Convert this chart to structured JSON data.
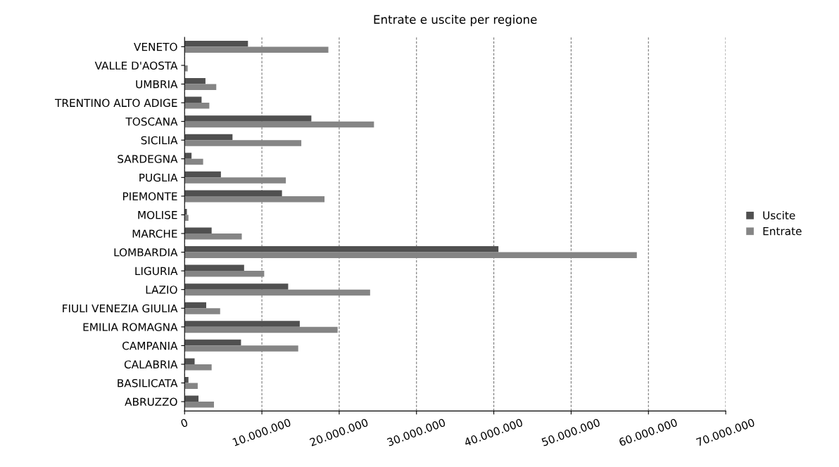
{
  "chart_data": {
    "type": "bar",
    "orientation": "horizontal",
    "title": "Entrate e uscite per regione",
    "categories": [
      "VENETO",
      "VALLE D'AOSTA",
      "UMBRIA",
      "TRENTINO ALTO ADIGE",
      "TOSCANA",
      "SICILIA",
      "SARDEGNA",
      "PUGLIA",
      "PIEMONTE",
      "MOLISE",
      "MARCHE",
      "LOMBARDIA",
      "LIGURIA",
      "LAZIO",
      "FIULI VENEZIA GIULIA",
      "EMILIA ROMAGNA",
      "CAMPANIA",
      "CALABRIA",
      "BASILICATA",
      "ABRUZZO"
    ],
    "series": [
      {
        "name": "Uscite",
        "color": "#505050",
        "values": [
          8200000,
          null,
          2700000,
          2200000,
          16400000,
          6200000,
          900000,
          4700000,
          12600000,
          300000,
          3500000,
          40600000,
          7700000,
          13400000,
          2800000,
          14900000,
          7300000,
          1300000,
          500000,
          1800000
        ]
      },
      {
        "name": "Entrate",
        "color": "#858585",
        "values": [
          18600000,
          400000,
          4100000,
          3200000,
          24500000,
          15100000,
          2400000,
          13100000,
          18100000,
          500000,
          7400000,
          58500000,
          10300000,
          24000000,
          4600000,
          19800000,
          14700000,
          3500000,
          1700000,
          3800000
        ]
      }
    ],
    "xlim": [
      0,
      70000000
    ],
    "xticks": [
      0,
      {
        "value": 10000000,
        "label": "10.000.000"
      },
      {
        "value": 20000000,
        "label": "20.000.000"
      },
      {
        "value": 30000000,
        "label": "30.000.000"
      },
      {
        "value": 40000000,
        "label": "40.000.000"
      },
      {
        "value": 50000000,
        "label": "50.000.000"
      },
      {
        "value": 60000000,
        "label": "60.000.000"
      },
      {
        "value": 70000000,
        "label": "70.000.000"
      }
    ],
    "grid": "x",
    "legend": "right"
  }
}
